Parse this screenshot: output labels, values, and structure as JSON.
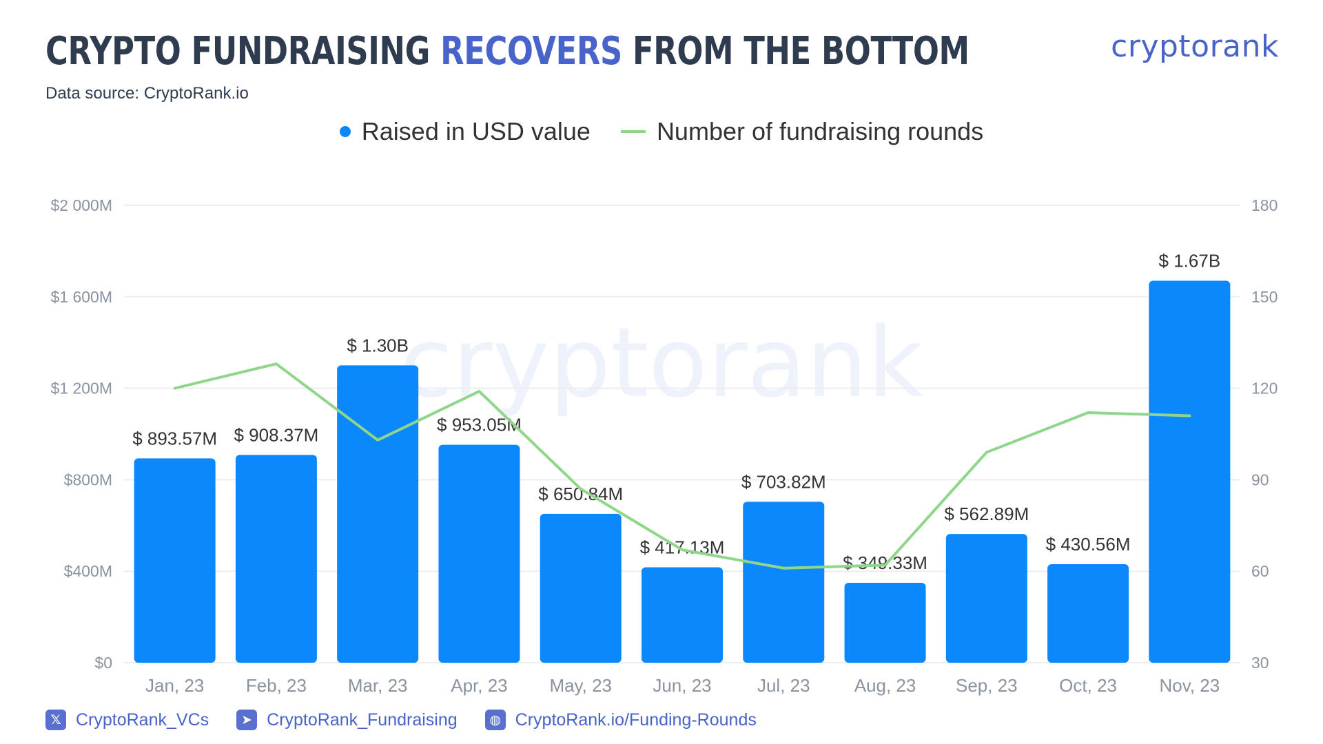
{
  "header": {
    "title_part1": "CRYPTO FUNDRAISING ",
    "title_accent": "RECOVERS",
    "title_part2": " FROM THE BOTTOM",
    "source": "Data source: CryptoRank.io",
    "brand": "cryptorank"
  },
  "watermark": "cryptorank",
  "colors": {
    "bar": "#0a88fc",
    "line": "#8fd68b",
    "accent": "#4863c9",
    "title": "#2f3c4f"
  },
  "chart_data": {
    "type": "bar",
    "title": "CRYPTO FUNDRAISING RECOVERS FROM THE BOTTOM",
    "categories": [
      "Jan, 23",
      "Feb, 23",
      "Mar, 23",
      "Apr, 23",
      "May, 23",
      "Jun, 23",
      "Jul, 23",
      "Aug, 23",
      "Sep, 23",
      "Oct, 23",
      "Nov, 23"
    ],
    "series": [
      {
        "name": "Raised in USD value",
        "type": "bar",
        "axis": "left",
        "values": [
          893.57,
          908.37,
          1300,
          953.05,
          650.84,
          417.13,
          703.82,
          349.33,
          562.89,
          430.56,
          1670
        ],
        "labels": [
          "$ 893.57M",
          "$ 908.37M",
          "$ 1.30B",
          "$ 953.05M",
          "$ 650.84M",
          "$ 417.13M",
          "$ 703.82M",
          "$ 349.33M",
          "$ 562.89M",
          "$ 430.56M",
          "$ 1.67B"
        ]
      },
      {
        "name": "Number of fundraising rounds",
        "type": "line",
        "axis": "right",
        "values": [
          120,
          128,
          103,
          119,
          87,
          67,
          61,
          62,
          99,
          112,
          111
        ]
      }
    ],
    "left_axis": {
      "ylim": [
        0,
        2000
      ],
      "ticks": [
        0,
        400,
        800,
        1200,
        1600,
        2000
      ],
      "tick_labels": [
        "$0",
        "$400M",
        "$800M",
        "$1 200M",
        "$1 600M",
        "$2 000M"
      ]
    },
    "right_axis": {
      "ylim": [
        30,
        180
      ],
      "ticks": [
        30,
        60,
        90,
        120,
        150,
        180
      ],
      "tick_labels": [
        "30",
        "60",
        "90",
        "120",
        "150",
        "180"
      ]
    },
    "grid": true,
    "legend_position": "top-center"
  },
  "footer": {
    "links": [
      {
        "icon": "x-icon",
        "label": "CryptoRank_VCs"
      },
      {
        "icon": "telegram-icon",
        "label": "CryptoRank_Fundraising"
      },
      {
        "icon": "globe-icon",
        "label": "CryptoRank.io/Funding-Rounds"
      }
    ]
  }
}
